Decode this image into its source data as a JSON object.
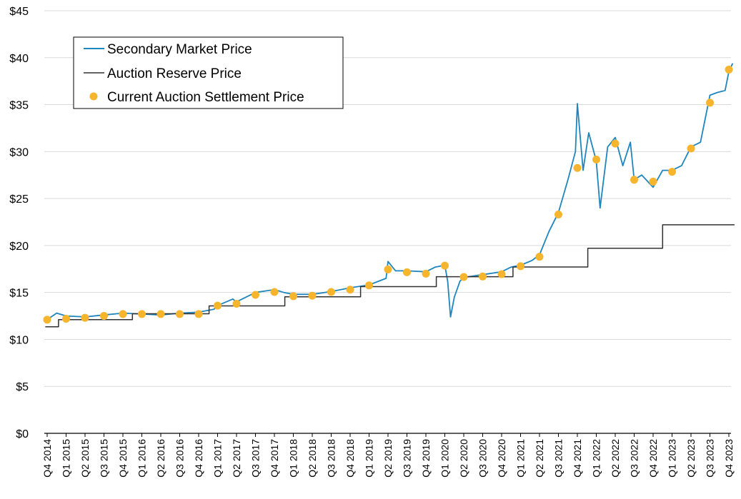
{
  "chart_data": {
    "type": "line",
    "title": "",
    "xlabel": "",
    "ylabel": "",
    "ylim": [
      0,
      45
    ],
    "y_ticks": [
      "$0",
      "$5",
      "$10",
      "$15",
      "$20",
      "$25",
      "$30",
      "$35",
      "$40",
      "$45"
    ],
    "grid": "horizontal",
    "legend_position": "top-left",
    "categories": [
      "Q4 2014",
      "Q1 2015",
      "Q2 2015",
      "Q3 2015",
      "Q4 2015",
      "Q1 2016",
      "Q2 2016",
      "Q3 2016",
      "Q4 2016",
      "Q1 2017",
      "Q2 2017",
      "Q3 2017",
      "Q4 2017",
      "Q1 2018",
      "Q2 2018",
      "Q3 2018",
      "Q4 2018",
      "Q1 2019",
      "Q2 2019",
      "Q3 2019",
      "Q4 2019",
      "Q1 2020",
      "Q2 2020",
      "Q3 2020",
      "Q4 2020",
      "Q1 2021",
      "Q2 2021",
      "Q3 2021",
      "Q4 2021",
      "Q1 2022",
      "Q2 2022",
      "Q3 2022",
      "Q4 2022",
      "Q1 2023",
      "Q2 2023",
      "Q3 2023",
      "Q4 2023"
    ],
    "series": [
      {
        "name": "Secondary Market Price",
        "style": "line",
        "color": "#1f86bd",
        "points": [
          [
            0,
            12.1
          ],
          [
            0.5,
            12.8
          ],
          [
            1,
            12.5
          ],
          [
            2,
            12.4
          ],
          [
            3,
            12.6
          ],
          [
            4,
            12.8
          ],
          [
            5,
            12.7
          ],
          [
            6,
            12.6
          ],
          [
            7,
            12.8
          ],
          [
            8,
            12.9
          ],
          [
            8.8,
            13.2
          ],
          [
            9,
            13.6
          ],
          [
            9.8,
            14.3
          ],
          [
            10,
            14.0
          ],
          [
            11,
            15.0
          ],
          [
            12,
            15.3
          ],
          [
            12.5,
            15.0
          ],
          [
            13,
            14.8
          ],
          [
            14,
            14.8
          ],
          [
            15,
            15.1
          ],
          [
            16,
            15.5
          ],
          [
            17,
            15.8
          ],
          [
            17.9,
            16.5
          ],
          [
            18,
            18.3
          ],
          [
            18.4,
            17.3
          ],
          [
            19,
            17.3
          ],
          [
            20,
            17.2
          ],
          [
            20.5,
            17.7
          ],
          [
            21,
            17.9
          ],
          [
            21.15,
            16.2
          ],
          [
            21.3,
            12.4
          ],
          [
            21.5,
            14.5
          ],
          [
            21.8,
            16.2
          ],
          [
            22,
            16.6
          ],
          [
            23,
            16.9
          ],
          [
            24,
            17.2
          ],
          [
            24.5,
            17.7
          ],
          [
            25,
            17.9
          ],
          [
            25.6,
            18.4
          ],
          [
            26,
            19.0
          ],
          [
            26.5,
            21.5
          ],
          [
            27,
            23.5
          ],
          [
            27.5,
            27.0
          ],
          [
            27.9,
            30.0
          ],
          [
            28,
            35.1
          ],
          [
            28.3,
            28.0
          ],
          [
            28.6,
            32.0
          ],
          [
            29,
            29.0
          ],
          [
            29.2,
            24.0
          ],
          [
            29.6,
            30.5
          ],
          [
            30,
            31.5
          ],
          [
            30.4,
            28.5
          ],
          [
            30.8,
            31.0
          ],
          [
            31,
            27.0
          ],
          [
            31.4,
            27.5
          ],
          [
            32,
            26.2
          ],
          [
            32.5,
            28.0
          ],
          [
            33,
            28.0
          ],
          [
            33.5,
            28.5
          ],
          [
            34,
            30.5
          ],
          [
            34.5,
            31.0
          ],
          [
            35,
            36.0
          ],
          [
            35.4,
            36.3
          ],
          [
            35.8,
            36.5
          ],
          [
            36,
            38.5
          ],
          [
            36.2,
            39.4
          ]
        ]
      },
      {
        "name": "Auction Reserve Price",
        "style": "step",
        "color": "#303030",
        "points": [
          [
            -0.1,
            11.34
          ],
          [
            0.6,
            11.34
          ],
          [
            0.6,
            12.1
          ],
          [
            4.5,
            12.1
          ],
          [
            4.5,
            12.73
          ],
          [
            8.55,
            12.73
          ],
          [
            8.55,
            13.57
          ],
          [
            12.55,
            13.57
          ],
          [
            12.55,
            14.53
          ],
          [
            16.55,
            14.53
          ],
          [
            16.55,
            15.62
          ],
          [
            20.55,
            15.62
          ],
          [
            20.55,
            16.68
          ],
          [
            24.6,
            16.68
          ],
          [
            24.6,
            17.71
          ],
          [
            28.55,
            17.71
          ],
          [
            28.55,
            19.7
          ],
          [
            32.5,
            19.7
          ],
          [
            32.5,
            22.2
          ],
          [
            36.3,
            22.2
          ]
        ]
      },
      {
        "name": "Current Auction Settlement Price",
        "style": "points",
        "color": "#f6b52c",
        "points": [
          [
            0,
            12.1
          ],
          [
            1,
            12.2
          ],
          [
            2,
            12.3
          ],
          [
            3,
            12.5
          ],
          [
            4,
            12.7
          ],
          [
            5,
            12.7
          ],
          [
            6,
            12.7
          ],
          [
            7,
            12.7
          ],
          [
            8,
            12.7
          ],
          [
            9,
            13.6
          ],
          [
            10,
            13.8
          ],
          [
            11,
            14.75
          ],
          [
            12,
            15.05
          ],
          [
            13,
            14.6
          ],
          [
            14,
            14.65
          ],
          [
            15,
            15.05
          ],
          [
            16,
            15.3
          ],
          [
            17,
            15.75
          ],
          [
            18,
            17.45
          ],
          [
            19,
            17.15
          ],
          [
            20,
            17.0
          ],
          [
            21,
            17.85
          ],
          [
            22,
            16.65
          ],
          [
            23,
            16.7
          ],
          [
            24,
            16.95
          ],
          [
            25,
            17.8
          ],
          [
            26,
            18.8
          ],
          [
            27,
            23.3
          ],
          [
            28,
            28.26
          ],
          [
            29,
            29.15
          ],
          [
            30,
            30.85
          ],
          [
            31,
            27.0
          ],
          [
            32,
            26.8
          ],
          [
            33,
            27.85
          ],
          [
            34,
            30.33
          ],
          [
            35,
            35.2
          ],
          [
            36,
            38.73
          ]
        ]
      }
    ]
  }
}
